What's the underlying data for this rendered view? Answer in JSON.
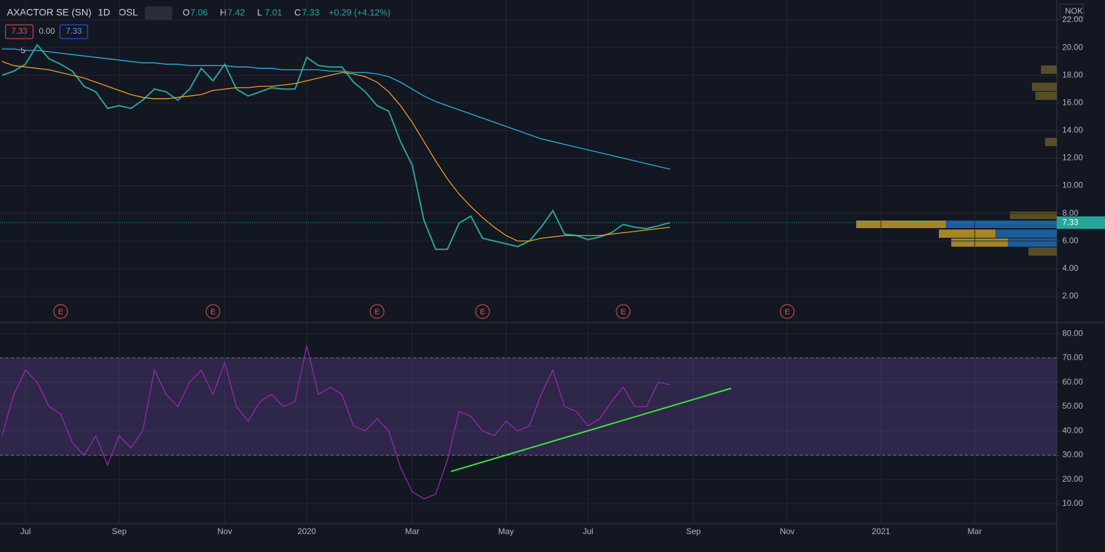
{
  "chart_data": [
    {
      "type": "line",
      "title": "AXACTOR SE (SN)",
      "interval": "1D",
      "exchange": "OSL",
      "ohlc": [
        {
          "label": "O",
          "value": 7.06
        },
        {
          "label": "H",
          "value": 7.42
        },
        {
          "label": "L",
          "value": 7.01
        },
        {
          "label": "C",
          "value": 7.33
        }
      ],
      "change": "+0.29 (+4.12%)",
      "badges": [
        "7.33",
        "0.00",
        "7.33"
      ],
      "indicator_count": "5",
      "currency": "NOK",
      "last_price": {
        "value": 7.33,
        "label": "7.33"
      },
      "categories": [
        null,
        null,
        "Jul",
        null,
        null,
        null,
        null,
        null,
        null,
        null,
        "Sep",
        null,
        null,
        null,
        null,
        null,
        null,
        null,
        null,
        "Nov",
        null,
        null,
        null,
        null,
        null,
        null,
        "2020",
        null,
        null,
        null,
        null,
        null,
        null,
        null,
        null,
        "Mar",
        null,
        null,
        null,
        null,
        null,
        null,
        null,
        "May",
        null,
        null,
        null,
        null,
        null,
        null,
        "Jul",
        null,
        null,
        null,
        null,
        null,
        null,
        null,
        null,
        "Sep",
        null,
        null,
        null,
        null,
        null,
        null,
        null,
        "Nov",
        null,
        null,
        null,
        null,
        null,
        null,
        null,
        "2021",
        null,
        null,
        null,
        null,
        null,
        null,
        null,
        "Mar",
        null,
        null,
        null,
        null,
        null,
        null
      ],
      "series": [
        {
          "color": "#26a69a",
          "values": [
            18.0,
            18.3,
            18.8,
            20.2,
            19.2,
            18.8,
            18.3,
            17.2,
            16.8,
            15.6,
            15.8,
            15.6,
            16.2,
            17.0,
            16.8,
            16.2,
            17.0,
            18.5,
            17.6,
            18.8,
            17.0,
            16.5,
            16.8,
            17.1,
            17.0,
            17.0,
            19.3,
            18.7,
            18.6,
            18.6,
            17.5,
            16.8,
            15.8,
            15.4,
            13.2,
            11.5,
            7.5,
            5.4,
            5.4,
            7.3,
            7.8,
            6.2,
            6.0,
            5.8,
            5.6,
            6.0,
            7.0,
            8.2,
            6.5,
            6.4,
            6.1,
            6.3,
            6.6,
            7.2,
            7.0,
            6.9,
            7.1,
            7.33,
            null,
            null,
            null,
            null,
            null,
            null,
            null,
            null,
            null,
            null,
            null,
            null,
            null,
            null,
            null,
            null,
            null,
            null,
            null,
            null,
            null,
            null,
            null,
            null,
            null,
            null,
            null,
            null,
            null,
            null,
            null,
            null
          ]
        },
        {
          "color": "#2fb5d8",
          "values": [
            19.9,
            19.9,
            19.8,
            19.8,
            19.7,
            19.6,
            19.5,
            19.4,
            19.3,
            19.2,
            19.1,
            19.0,
            18.9,
            18.9,
            18.8,
            18.8,
            18.7,
            18.7,
            18.7,
            18.7,
            18.6,
            18.6,
            18.5,
            18.5,
            18.4,
            18.4,
            18.4,
            18.4,
            18.3,
            18.3,
            18.2,
            18.2,
            18.1,
            17.9,
            17.5,
            17.0,
            16.5,
            16.1,
            15.8,
            15.5,
            15.2,
            14.9,
            14.6,
            14.3,
            14.0,
            13.7,
            13.4,
            13.2,
            13.0,
            12.8,
            12.6,
            12.4,
            12.2,
            12.0,
            11.8,
            11.6,
            11.4,
            11.2,
            null,
            null,
            null,
            null,
            null,
            null,
            null,
            null,
            null,
            null,
            null,
            null,
            null,
            null,
            null,
            null,
            null,
            null,
            null,
            null,
            null,
            null,
            null,
            null,
            null,
            null,
            null,
            null,
            null,
            null,
            null,
            null
          ]
        },
        {
          "color": "#f0a028",
          "values": [
            19.0,
            18.7,
            18.6,
            18.5,
            18.4,
            18.2,
            18.0,
            17.8,
            17.5,
            17.2,
            16.9,
            16.6,
            16.4,
            16.3,
            16.3,
            16.4,
            16.5,
            16.6,
            16.9,
            17.0,
            17.1,
            17.1,
            17.2,
            17.2,
            17.3,
            17.4,
            17.6,
            17.8,
            18.0,
            18.2,
            18.1,
            17.9,
            17.5,
            16.8,
            15.8,
            14.6,
            13.2,
            11.8,
            10.5,
            9.4,
            8.5,
            7.7,
            7.0,
            6.4,
            6.0,
            6.0,
            6.2,
            6.3,
            6.4,
            6.4,
            6.4,
            6.4,
            6.5,
            6.6,
            6.7,
            6.8,
            6.9,
            7.0,
            null,
            null,
            null,
            null,
            null,
            null,
            null,
            null,
            null,
            null,
            null,
            null,
            null,
            null,
            null,
            null,
            null,
            null,
            null,
            null,
            null,
            null,
            null,
            null,
            null,
            null,
            null,
            null,
            null,
            null,
            null,
            null
          ]
        }
      ],
      "events": [
        {
          "x": 5,
          "label": "E"
        },
        {
          "x": 18,
          "label": "E"
        },
        {
          "x": 32,
          "label": "E"
        },
        {
          "x": 41,
          "label": "E"
        },
        {
          "x": 53,
          "label": "E"
        },
        {
          "x": 67,
          "label": "E"
        }
      ],
      "ylim": [
        0.1,
        23.45
      ],
      "yticks": [
        {
          "value": 2,
          "label": "2.00"
        },
        {
          "value": 4,
          "label": "4.00"
        },
        {
          "value": 6,
          "label": "6.00"
        },
        {
          "value": 8,
          "label": "8.00"
        },
        {
          "value": 10,
          "label": "10.00"
        },
        {
          "value": 12,
          "label": "12.00"
        },
        {
          "value": 14,
          "label": "14.00"
        },
        {
          "value": 16,
          "label": "16.00"
        },
        {
          "value": 18,
          "label": "18.00"
        },
        {
          "value": 20,
          "label": "20.00"
        },
        {
          "value": 22,
          "label": "22.00"
        }
      ],
      "grid": true
    },
    {
      "type": "line",
      "series": [
        {
          "color": "#9c27b0",
          "values": [
            38,
            55,
            65,
            60,
            50,
            47,
            35,
            30,
            38,
            26,
            38,
            33,
            40,
            65,
            55,
            50,
            60,
            65,
            55,
            68,
            50,
            44,
            52,
            55,
            50,
            52,
            75,
            55,
            58,
            55,
            42,
            40,
            45,
            40,
            25,
            15,
            12,
            14,
            28,
            48,
            46,
            40,
            38,
            44,
            40,
            42,
            55,
            65,
            50,
            48,
            42,
            45,
            52,
            58,
            50,
            50,
            60,
            59,
            null,
            null,
            null,
            null,
            null,
            null,
            null,
            null,
            null,
            null,
            null,
            null,
            null,
            null,
            null,
            null,
            null,
            null,
            null,
            null,
            null,
            null,
            null,
            null,
            null,
            null,
            null,
            null,
            null,
            null,
            null,
            null
          ]
        }
      ],
      "bands": [
        30,
        70
      ],
      "trendline": {
        "color": "#3ee83e",
        "x": [
          38.3,
          62.2
        ],
        "y": [
          23.3,
          57.5
        ]
      },
      "ylim": [
        1.8,
        84
      ],
      "yticks": [
        {
          "value": 10,
          "label": "10.00"
        },
        {
          "value": 20,
          "label": "20.00"
        },
        {
          "value": 30,
          "label": "30.00"
        },
        {
          "value": 40,
          "label": "40.00"
        },
        {
          "value": 50,
          "label": "50.00"
        },
        {
          "value": 60,
          "label": "60.00"
        },
        {
          "value": 70,
          "label": "70.00"
        },
        {
          "value": 80,
          "label": "80.00"
        }
      ],
      "grid": true
    }
  ]
}
